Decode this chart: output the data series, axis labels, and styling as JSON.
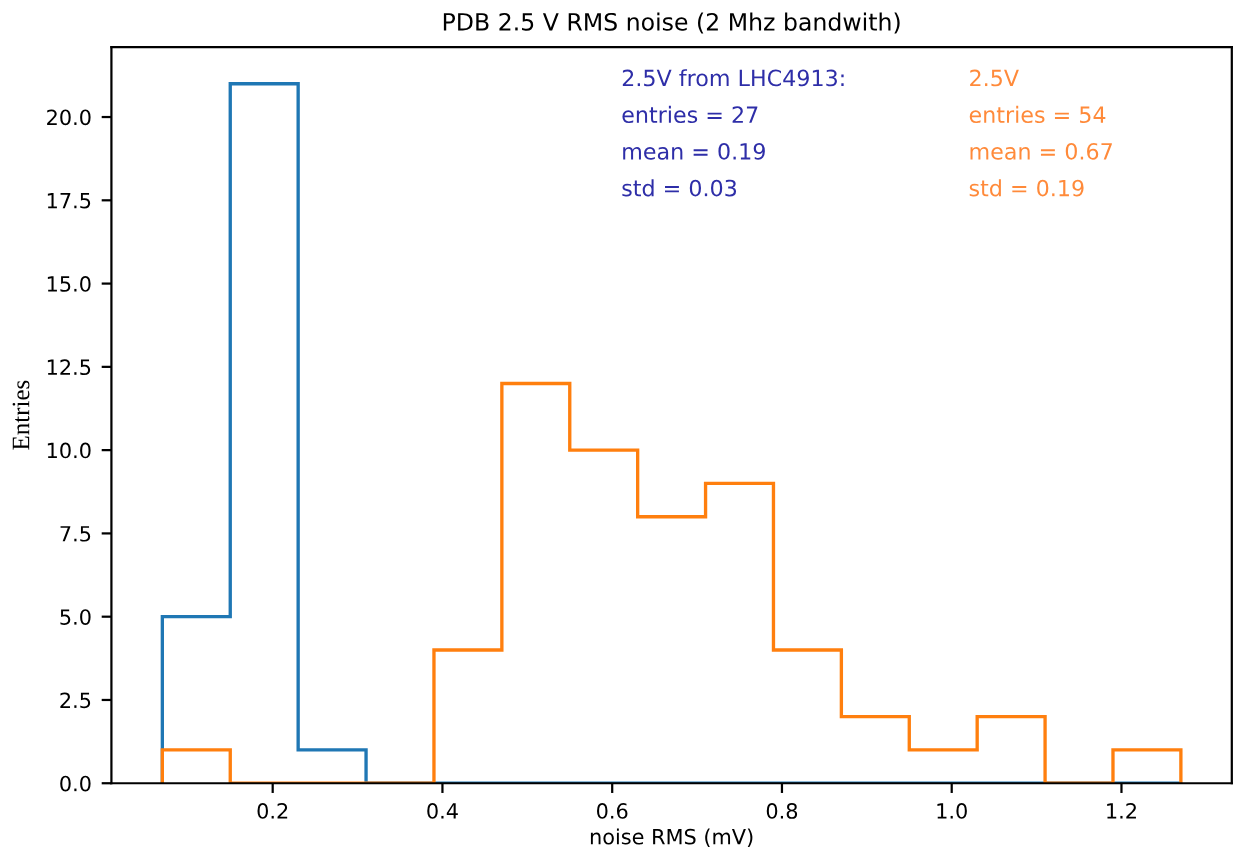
{
  "chart_data": {
    "type": "histogram",
    "title": "PDB 2.5 V RMS noise (2 Mhz bandwith)",
    "xlabel": "noise RMS (mV)",
    "ylabel": "Entries",
    "bins": [
      0.07,
      0.15,
      0.23,
      0.31,
      0.39,
      0.47,
      0.55,
      0.63,
      0.71,
      0.79,
      0.87,
      0.95,
      1.03,
      1.11,
      1.19,
      1.27
    ],
    "series": [
      {
        "color": "#1f77b4",
        "values": [
          5,
          21,
          1,
          0,
          0,
          0,
          0,
          0,
          0,
          0,
          0,
          0,
          0,
          0,
          0
        ]
      },
      {
        "color": "#ff7f0e",
        "values": [
          1,
          0,
          0,
          0,
          4,
          12,
          10,
          8,
          9,
          4,
          2,
          1,
          2,
          0,
          1
        ]
      }
    ],
    "xlim": [
      0.01,
      1.33
    ],
    "ylim": [
      0,
      22.1
    ],
    "xticks": [
      0.2,
      0.4,
      0.6,
      0.8,
      {
        "value": 1,
        "label": "1.0"
      },
      1.2
    ],
    "yticks": [
      {
        "value": 0,
        "label": "0.0"
      },
      2.5,
      {
        "value": 5,
        "label": "5.0"
      },
      7.5,
      {
        "value": 10,
        "label": "10.0"
      },
      12.5,
      {
        "value": 15,
        "label": "15.0"
      },
      17.5,
      {
        "value": 20,
        "label": "20.0"
      }
    ],
    "annotations": [
      "2.5V from LHC4913:\nentries = 27\nmean = 0.19\nstd = 0.03",
      "2.5V\nentries = 54\nmean = 0.67\nstd = 0.19"
    ],
    "grid": false,
    "legend": false
  }
}
